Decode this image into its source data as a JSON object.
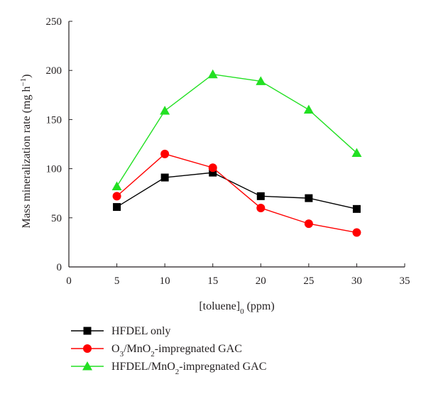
{
  "chart_data": {
    "type": "line",
    "xlabel": "[toluene]",
    "xlabel_sub": "0",
    "xlabel_unit": " (ppm)",
    "ylabel": "Mass mineralization rate (mg h",
    "ylabel_sup": "−1",
    "ylabel_close": ")",
    "xlim": [
      0,
      35
    ],
    "ylim": [
      0,
      250
    ],
    "xticks": [
      0,
      5,
      10,
      15,
      20,
      25,
      30,
      35
    ],
    "yticks": [
      0,
      50,
      100,
      150,
      200,
      250
    ],
    "grid": false,
    "legend_position": "bottom-left",
    "x": [
      5,
      10,
      15,
      20,
      25,
      30
    ],
    "series": [
      {
        "name": "HFDEL only",
        "legend_parts": [
          [
            "HFDEL only",
            ""
          ]
        ],
        "color": "#000000",
        "marker": "square",
        "values": [
          61,
          91,
          96,
          72,
          70,
          59
        ]
      },
      {
        "name": "O3/MnO2-impregnated GAC",
        "legend_parts": [
          [
            "O",
            ""
          ],
          [
            "3",
            "sub"
          ],
          [
            "/MnO",
            ""
          ],
          [
            "2",
            "sub"
          ],
          [
            "-impregnated GAC",
            ""
          ]
        ],
        "color": "#ff0000",
        "marker": "circle",
        "values": [
          72,
          115,
          101,
          60,
          44,
          35
        ]
      },
      {
        "name": "HFDEL/MnO2-impregnated GAC",
        "legend_parts": [
          [
            "HFDEL/MnO",
            ""
          ],
          [
            "2",
            "sub"
          ],
          [
            "-impregnated GAC",
            ""
          ]
        ],
        "color": "#22e022",
        "marker": "triangle",
        "values": [
          82,
          159,
          196,
          189,
          160,
          116
        ]
      }
    ]
  }
}
